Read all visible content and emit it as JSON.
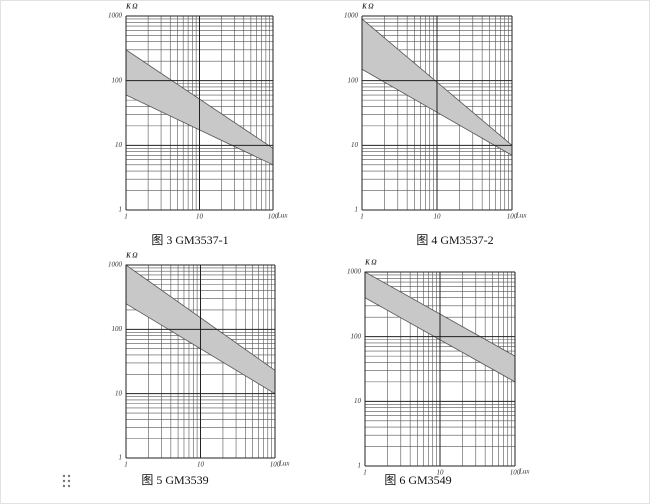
{
  "chart_data": [
    {
      "type": "area",
      "title": "图 3 GM3537-1",
      "y_label": "K Ω",
      "x_label": "Lux",
      "log_x": true,
      "log_y": true,
      "grid": true,
      "color": "#c8c8c8",
      "x": [
        1,
        100
      ],
      "series": [
        {
          "values": [
            300,
            9
          ]
        },
        {
          "values": [
            60,
            5
          ]
        }
      ],
      "xlim": [
        1,
        100
      ],
      "ylim": [
        1,
        1000
      ],
      "xticks": [
        1,
        10,
        100
      ],
      "yticks": [
        1,
        10,
        100,
        1000
      ]
    },
    {
      "type": "area",
      "title": "图 4 GM3537-2",
      "y_label": "K Ω",
      "x_label": "Lux",
      "log_x": true,
      "log_y": true,
      "grid": true,
      "color": "#c8c8c8",
      "x": [
        1,
        100
      ],
      "series": [
        {
          "values": [
            900,
            10
          ]
        },
        {
          "values": [
            150,
            7
          ]
        }
      ],
      "xlim": [
        1,
        100
      ],
      "ylim": [
        1,
        1000
      ],
      "xticks": [
        1,
        10,
        100
      ],
      "yticks": [
        1,
        10,
        100,
        1000
      ]
    },
    {
      "type": "area",
      "title": "图 5 GM3539",
      "y_label": "K Ω",
      "x_label": "Lux",
      "log_x": true,
      "log_y": true,
      "grid": true,
      "color": "#c8c8c8",
      "x": [
        1,
        100
      ],
      "series": [
        {
          "values": [
            1000,
            23
          ]
        },
        {
          "values": [
            250,
            10
          ]
        }
      ],
      "xlim": [
        1,
        100
      ],
      "ylim": [
        1,
        1000
      ],
      "xticks": [
        1,
        10,
        100
      ],
      "yticks": [
        1,
        10,
        100,
        1000
      ]
    },
    {
      "type": "area",
      "title": "图 6 GM3549",
      "y_label": "K Ω",
      "x_label": "Lux",
      "log_x": true,
      "log_y": true,
      "grid": true,
      "color": "#c8c8c8",
      "x": [
        1,
        100
      ],
      "series": [
        {
          "values": [
            1000,
            50
          ]
        },
        {
          "values": [
            400,
            20
          ]
        }
      ],
      "xlim": [
        1,
        100
      ],
      "ylim": [
        1,
        1000
      ],
      "xticks": [
        1,
        10,
        100
      ],
      "yticks": [
        1,
        10,
        100,
        1000
      ]
    }
  ]
}
